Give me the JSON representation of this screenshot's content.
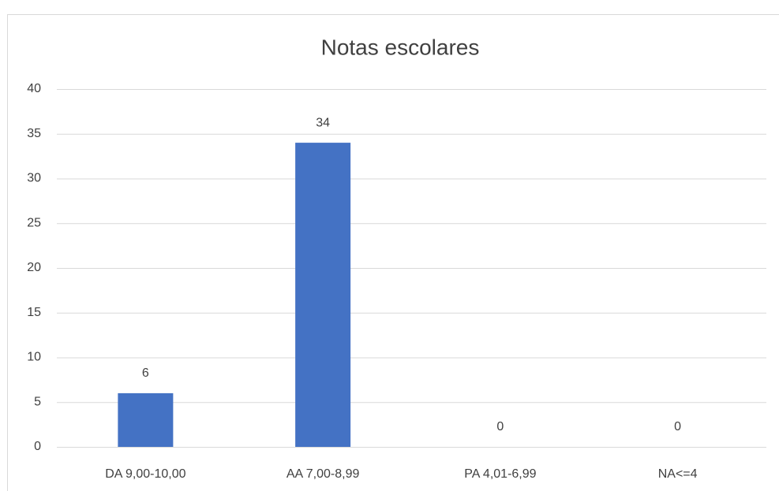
{
  "chart_data": {
    "type": "bar",
    "title": "Notas escolares",
    "categories": [
      "DA 9,00-10,00",
      "AA 7,00-8,99",
      "PA 4,01-6,99",
      "NA<=4"
    ],
    "values": [
      6,
      34,
      0,
      0
    ],
    "color": "#4472c4",
    "ylim": [
      0,
      40
    ],
    "yticks": [
      0,
      5,
      10,
      15,
      20,
      25,
      30,
      35,
      40
    ],
    "grid": true,
    "data_labels": true
  }
}
